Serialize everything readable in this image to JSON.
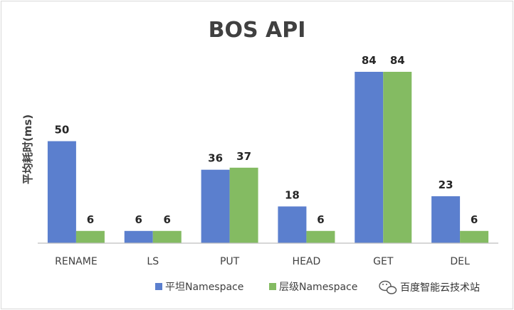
{
  "chart_data": {
    "type": "bar",
    "title": "BOS API",
    "xlabel": "",
    "ylabel": "平均耗时(ms)",
    "categories": [
      "RENAME",
      "LS",
      "PUT",
      "HEAD",
      "GET",
      "DEL"
    ],
    "series": [
      {
        "name": "平坦Namespace",
        "values": [
          50,
          6,
          36,
          18,
          84,
          23
        ],
        "color": "#5b7fce"
      },
      {
        "name": "层级Namespace",
        "values": [
          6,
          6,
          37,
          6,
          84,
          6
        ],
        "color": "#84bb62"
      }
    ],
    "ylim": [
      0,
      92
    ],
    "grid": false,
    "legend_position": "bottom"
  },
  "watermark": {
    "text": "百度智能云技术站",
    "icon": "wechat-bubble-icon"
  }
}
